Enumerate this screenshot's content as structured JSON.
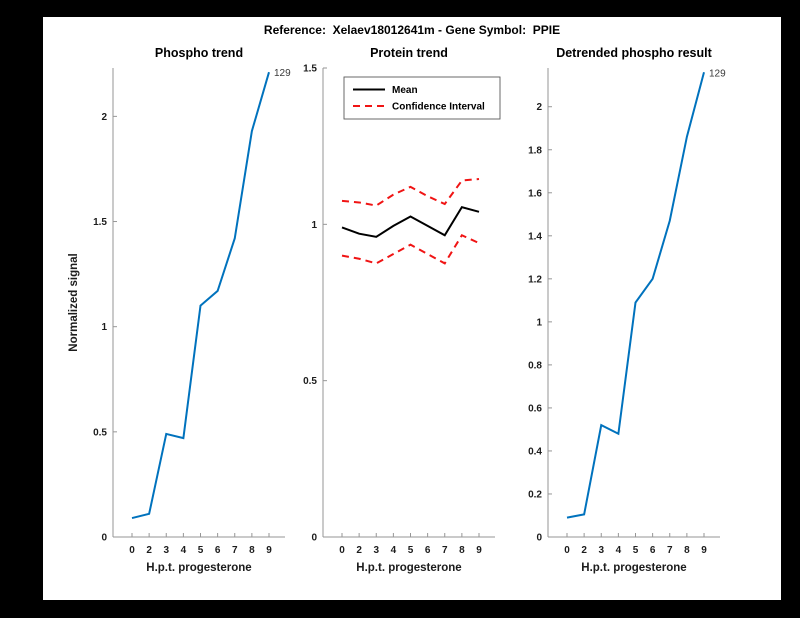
{
  "header": {
    "title": "Reference:  Xelaev18012641m - Gene Symbol:  PPIE"
  },
  "colors": {
    "figure_background": "#ffffff",
    "window_background": "#000000",
    "line_blue": "#0072bd",
    "line_black": "#000000",
    "line_red": "#f01414",
    "spine_gray": "#969696",
    "text_dark": "#1c1c1c"
  },
  "chart_data": [
    {
      "type": "line",
      "title": "Phospho trend",
      "xlabel": "H.p.t. progesterone",
      "ylabel": "Normalized signal",
      "x_ticklabels": [
        "0",
        "2",
        "3",
        "4",
        "5",
        "6",
        "7",
        "8",
        "9"
      ],
      "ytick_values": [
        0,
        0.5,
        1,
        1.5,
        2
      ],
      "ytick_labels": [
        "0",
        "0.5",
        "1",
        "1.5",
        "2"
      ],
      "ylim": [
        0,
        2.23
      ],
      "grid": false,
      "end_label": "129",
      "series": [
        {
          "name": "phospho-signal-line",
          "color": "#0072bd",
          "dash": "none",
          "width": 2,
          "values": [
            0.09,
            0.11,
            0.49,
            0.47,
            1.1,
            1.17,
            1.42,
            1.93,
            2.21
          ]
        }
      ]
    },
    {
      "type": "line",
      "title": "Protein trend",
      "xlabel": "H.p.t. progesterone",
      "ylabel": "",
      "x_ticklabels": [
        "0",
        "2",
        "3",
        "4",
        "5",
        "6",
        "7",
        "8",
        "9"
      ],
      "ytick_values": [
        0,
        0.5,
        1,
        1.5
      ],
      "ytick_labels": [
        "0",
        "0.5",
        "1",
        "1.5"
      ],
      "ylim": [
        0,
        1.5
      ],
      "grid": false,
      "legend": {
        "position": "top-left",
        "entries": [
          {
            "label": "Mean",
            "color": "#000000",
            "dash": "none"
          },
          {
            "label": "Confidence Interval",
            "color": "#f01414",
            "dash": "7 5"
          }
        ]
      },
      "series": [
        {
          "name": "protein-mean-line",
          "color": "#000000",
          "dash": "none",
          "width": 2,
          "values": [
            0.99,
            0.97,
            0.96,
            0.995,
            1.025,
            0.995,
            0.965,
            1.055,
            1.04
          ]
        },
        {
          "name": "confidence-upper-line",
          "color": "#f01414",
          "dash": "7 5",
          "width": 2,
          "values": [
            1.075,
            1.07,
            1.06,
            1.095,
            1.12,
            1.09,
            1.065,
            1.14,
            1.145
          ]
        },
        {
          "name": "confidence-lower-line",
          "color": "#f01414",
          "dash": "7 5",
          "width": 2,
          "values": [
            0.9,
            0.89,
            0.875,
            0.905,
            0.935,
            0.905,
            0.875,
            0.965,
            0.94
          ]
        }
      ]
    },
    {
      "type": "line",
      "title": "Detrended phospho result",
      "xlabel": "H.p.t. progesterone",
      "ylabel": "",
      "x_ticklabels": [
        "0",
        "2",
        "3",
        "4",
        "5",
        "6",
        "7",
        "8",
        "9"
      ],
      "ytick_values": [
        0,
        0.2,
        0.4,
        0.6,
        0.8,
        1,
        1.2,
        1.4,
        1.6,
        1.8,
        2
      ],
      "ytick_labels": [
        "0",
        "0.2",
        "0.4",
        "0.6",
        "0.8",
        "1",
        "1.2",
        "1.4",
        "1.6",
        "1.8",
        "2"
      ],
      "ylim": [
        0,
        2.18
      ],
      "grid": false,
      "end_label": "129",
      "series": [
        {
          "name": "detrended-phospho-line",
          "color": "#0072bd",
          "dash": "none",
          "width": 2,
          "values": [
            0.09,
            0.105,
            0.52,
            0.48,
            1.09,
            1.2,
            1.47,
            1.86,
            2.16
          ]
        }
      ]
    }
  ]
}
